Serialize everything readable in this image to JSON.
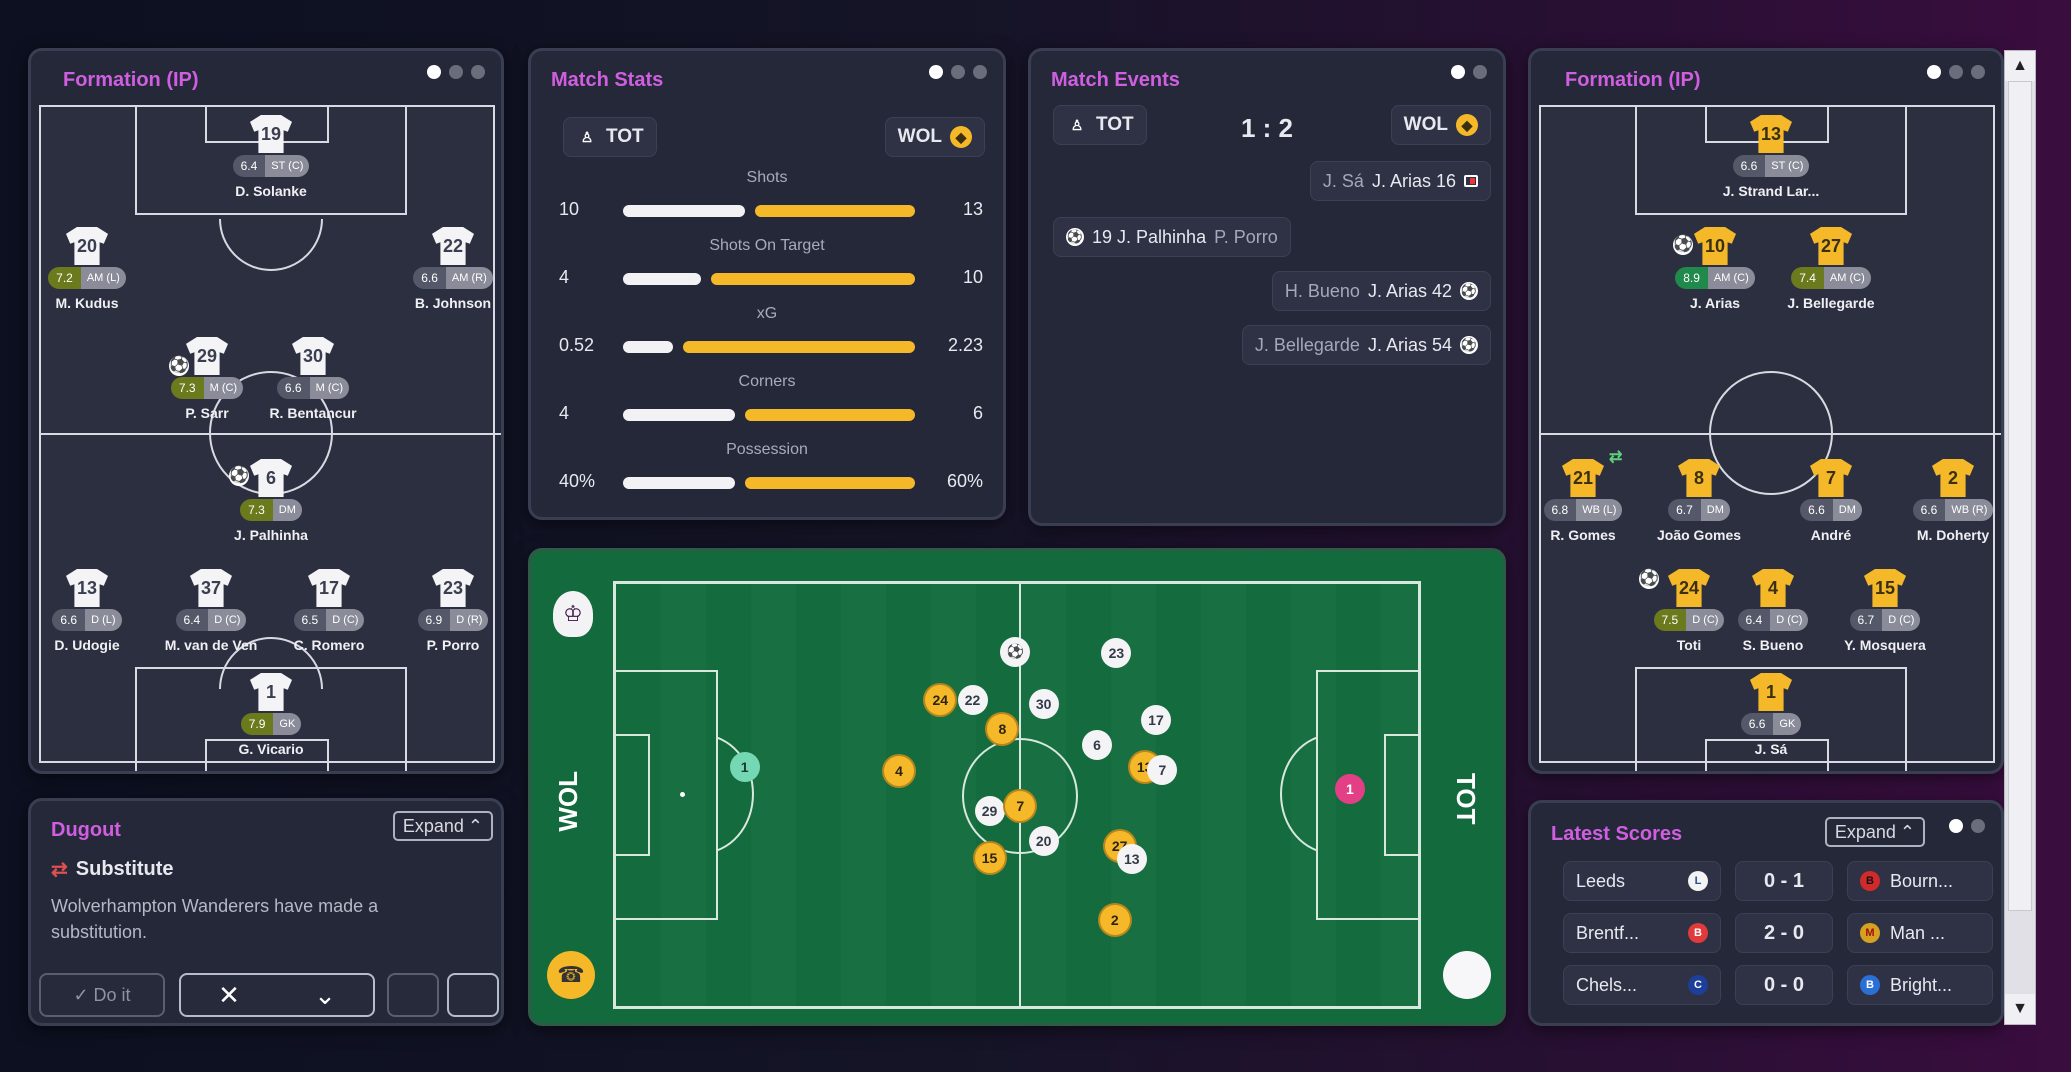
{
  "formation_left": {
    "title": "Formation (IP)",
    "players": [
      {
        "num": "19",
        "rating": "6.4",
        "pos": "ST (C)",
        "name": "D. Solanke",
        "tier": ""
      },
      {
        "num": "20",
        "rating": "7.2",
        "pos": "AM (L)",
        "name": "M. Kudus",
        "tier": "g"
      },
      {
        "num": "22",
        "rating": "6.6",
        "pos": "AM (R)",
        "name": "B. Johnson",
        "tier": ""
      },
      {
        "num": "29",
        "rating": "7.3",
        "pos": "M (C)",
        "name": "P. Sarr",
        "tier": "g"
      },
      {
        "num": "30",
        "rating": "6.6",
        "pos": "M (C)",
        "name": "R. Bentancur",
        "tier": ""
      },
      {
        "num": "6",
        "rating": "7.3",
        "pos": "DM",
        "name": "J. Palhinha",
        "tier": "g"
      },
      {
        "num": "13",
        "rating": "6.6",
        "pos": "D (L)",
        "name": "D. Udogie",
        "tier": ""
      },
      {
        "num": "37",
        "rating": "6.4",
        "pos": "D (C)",
        "name": "M. van de Ven",
        "tier": ""
      },
      {
        "num": "17",
        "rating": "6.5",
        "pos": "D (C)",
        "name": "C. Romero",
        "tier": ""
      },
      {
        "num": "23",
        "rating": "6.9",
        "pos": "D (R)",
        "name": "P. Porro",
        "tier": ""
      },
      {
        "num": "1",
        "rating": "7.9",
        "pos": "GK",
        "name": "G. Vicario",
        "tier": "g"
      }
    ]
  },
  "formation_right": {
    "title": "Formation (IP)",
    "players": [
      {
        "num": "13",
        "rating": "6.6",
        "pos": "ST (C)",
        "name": "J. Strand Lar...",
        "tier": ""
      },
      {
        "num": "10",
        "rating": "8.9",
        "pos": "AM (C)",
        "name": "J. Arias",
        "tier": "gg"
      },
      {
        "num": "27",
        "rating": "7.4",
        "pos": "AM (C)",
        "name": "J. Bellegarde",
        "tier": "g"
      },
      {
        "num": "21",
        "rating": "6.8",
        "pos": "WB (L)",
        "name": "R. Gomes",
        "tier": ""
      },
      {
        "num": "8",
        "rating": "6.7",
        "pos": "DM",
        "name": "João Gomes",
        "tier": ""
      },
      {
        "num": "7",
        "rating": "6.6",
        "pos": "DM",
        "name": "André",
        "tier": ""
      },
      {
        "num": "2",
        "rating": "6.6",
        "pos": "WB (R)",
        "name": "M. Doherty",
        "tier": ""
      },
      {
        "num": "24",
        "rating": "7.5",
        "pos": "D (C)",
        "name": "Toti",
        "tier": "g"
      },
      {
        "num": "4",
        "rating": "6.4",
        "pos": "D (C)",
        "name": "S. Bueno",
        "tier": ""
      },
      {
        "num": "15",
        "rating": "6.7",
        "pos": "D (C)",
        "name": "Y. Mosquera",
        "tier": ""
      },
      {
        "num": "1",
        "rating": "6.6",
        "pos": "GK",
        "name": "J. Sá",
        "tier": ""
      }
    ]
  },
  "match_stats": {
    "title": "Match Stats",
    "home": "TOT",
    "away": "WOL",
    "rows": [
      {
        "label": "Shots",
        "home": "10",
        "away": "13",
        "home_val": 10,
        "away_val": 13
      },
      {
        "label": "Shots On Target",
        "home": "4",
        "away": "10",
        "home_val": 4,
        "away_val": 10
      },
      {
        "label": "xG",
        "home": "0.52",
        "away": "2.23",
        "home_val": 0.52,
        "away_val": 2.23
      },
      {
        "label": "Corners",
        "home": "4",
        "away": "6",
        "home_val": 4,
        "away_val": 6
      },
      {
        "label": "Possession",
        "home": "40%",
        "away": "60%",
        "home_val": 40,
        "away_val": 60
      }
    ]
  },
  "match_events": {
    "title": "Match Events",
    "home": "TOT",
    "away": "WOL",
    "score": "1 : 2",
    "events": [
      {
        "sub": "J. Sá",
        "main": "J. Arias 16",
        "icon": "red-card-icon",
        "side": "away"
      },
      {
        "main": "19 J. Palhinha",
        "sub": "P. Porro",
        "icon": "ball-icon",
        "side": "home"
      },
      {
        "sub": "H. Bueno",
        "main": "J. Arias 42",
        "icon": "ball-icon",
        "side": "away"
      },
      {
        "sub": "J. Bellegarde",
        "main": "J. Arias 54",
        "icon": "ball-icon",
        "side": "away"
      }
    ]
  },
  "live_pitch": {
    "left_label": "WOL",
    "right_label": "TOT",
    "markers": [
      {
        "n": "1",
        "t": "t",
        "x": 0.163,
        "y": 0.435
      },
      {
        "n": "4",
        "t": "y",
        "x": 0.354,
        "y": 0.445
      },
      {
        "n": "24",
        "t": "y",
        "x": 0.405,
        "y": 0.279
      },
      {
        "n": "22",
        "t": "w",
        "x": 0.445,
        "y": 0.279
      },
      {
        "n": "8",
        "t": "y",
        "x": 0.482,
        "y": 0.345
      },
      {
        "n": "30",
        "t": "w",
        "x": 0.533,
        "y": 0.287
      },
      {
        "n": "23",
        "t": "w",
        "x": 0.623,
        "y": 0.168
      },
      {
        "n": "6",
        "t": "w",
        "x": 0.599,
        "y": 0.383
      },
      {
        "n": "17",
        "t": "w",
        "x": 0.672,
        "y": 0.324
      },
      {
        "n": "13",
        "t": "y",
        "x": 0.658,
        "y": 0.434
      },
      {
        "n": "7",
        "t": "w",
        "x": 0.68,
        "y": 0.442
      },
      {
        "n": "29",
        "t": "w",
        "x": 0.466,
        "y": 0.537
      },
      {
        "n": "7",
        "t": "y",
        "x": 0.504,
        "y": 0.526
      },
      {
        "n": "20",
        "t": "w",
        "x": 0.533,
        "y": 0.608
      },
      {
        "n": "15",
        "t": "y",
        "x": 0.466,
        "y": 0.647
      },
      {
        "n": "27",
        "t": "y",
        "x": 0.627,
        "y": 0.619
      },
      {
        "n": "13",
        "t": "w",
        "x": 0.642,
        "y": 0.65
      },
      {
        "n": "2",
        "t": "y",
        "x": 0.621,
        "y": 0.792
      },
      {
        "n": "1",
        "t": "p",
        "x": 0.912,
        "y": 0.487
      },
      {
        "n": "⚽",
        "t": "w",
        "x": 0.498,
        "y": 0.165
      }
    ]
  },
  "dugout": {
    "title": "Dugout",
    "expand": "Expand",
    "action": "Substitute",
    "message": "Wolverhampton Wanderers have made a substitution.",
    "doit": "Do it"
  },
  "latest_scores": {
    "title": "Latest Scores",
    "expand": "Expand",
    "games": [
      {
        "home": "Leeds",
        "score": "0 - 1",
        "away": "Bourn..."
      },
      {
        "home": "Brentf...",
        "score": "2 - 0",
        "away": "Man ..."
      },
      {
        "home": "Chels...",
        "score": "0 - 0",
        "away": "Bright..."
      }
    ]
  }
}
